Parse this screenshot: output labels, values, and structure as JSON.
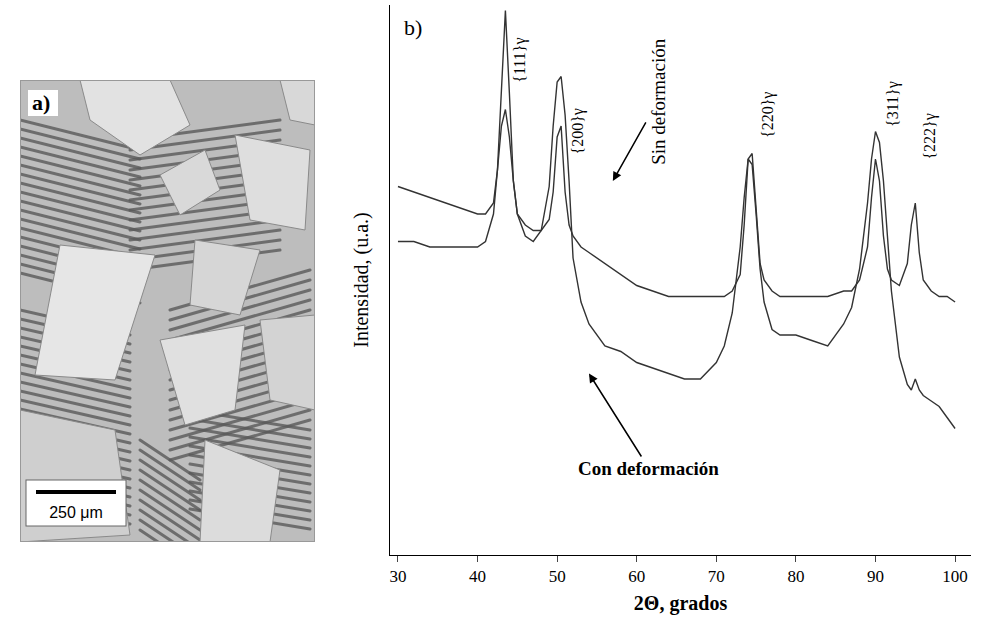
{
  "image_panel": {
    "label": "a)",
    "scale_bar": "250 μm"
  },
  "chart_data": {
    "type": "line",
    "label": "b)",
    "x_label": "2Θ, grados",
    "y_label": "Intensidad, (u.a.)",
    "x": [
      30,
      32,
      34,
      36,
      38,
      40,
      41,
      42,
      42.5,
      43,
      43.5,
      44,
      44.5,
      45,
      46,
      47,
      48,
      49,
      49.5,
      50,
      50.5,
      51,
      51.5,
      52,
      53,
      54,
      56,
      58,
      60,
      62,
      64,
      66,
      68,
      70,
      71,
      72,
      73,
      73.5,
      74,
      74.5,
      75,
      75.5,
      76,
      77,
      78,
      80,
      82,
      84,
      86,
      87,
      88,
      89,
      89.5,
      90,
      90.5,
      91,
      91.5,
      92,
      93,
      94,
      94.5,
      95,
      95.5,
      96,
      97,
      98,
      99,
      100
    ],
    "series": [
      {
        "color": "#333333",
        "values": [
          67,
          66,
          65,
          64,
          63,
          62,
          62,
          64,
          70,
          85,
          99,
          84,
          68,
          62,
          60,
          59,
          59,
          61,
          66,
          76,
          78,
          66,
          60,
          58,
          56,
          55,
          53,
          51,
          49,
          48,
          47,
          47,
          47,
          47,
          47,
          48,
          51,
          60,
          72,
          73,
          62,
          53,
          50,
          48,
          47,
          47,
          47,
          47,
          48,
          48,
          50,
          56,
          65,
          72,
          68,
          58,
          52,
          50,
          49,
          53,
          60,
          64,
          55,
          50,
          48,
          47,
          47,
          46
        ]
      },
      {
        "color": "#333333",
        "values": [
          57,
          57,
          56,
          56,
          56,
          56,
          57,
          62,
          70,
          78,
          81,
          76,
          68,
          62,
          58,
          57,
          59,
          67,
          78,
          86,
          87,
          80,
          68,
          54,
          46,
          42,
          38,
          37,
          35,
          34,
          33,
          32,
          32,
          35,
          38,
          44,
          56,
          65,
          72,
          71,
          62,
          52,
          46,
          41,
          40,
          40,
          39,
          38,
          42,
          45,
          52,
          64,
          72,
          77,
          75,
          68,
          58,
          48,
          36,
          31,
          30,
          32,
          30,
          29,
          28,
          27,
          25,
          23
        ]
      }
    ],
    "xlim": [
      29,
      102
    ],
    "xticks": [
      30,
      40,
      50,
      60,
      70,
      80,
      90,
      100
    ],
    "ylim": [
      0,
      100
    ],
    "yticks": [],
    "tick_labels": "x",
    "grid": false,
    "peak_labels": [
      {
        "text": "{111}γ",
        "x": 45.3,
        "y": 90
      },
      {
        "text": "{200}γ",
        "x": 52.5,
        "y": 77
      },
      {
        "text": "{220}γ",
        "x": 76.5,
        "y": 80
      },
      {
        "text": "{311}γ",
        "x": 92.2,
        "y": 82
      },
      {
        "text": "{222}γ",
        "x": 96.8,
        "y": 76
      }
    ],
    "arrow_labels": [
      {
        "text": "Sin deformación",
        "x": 57,
        "y": 68
      },
      {
        "text": "Con deformación",
        "x": 54,
        "y": 33
      }
    ]
  }
}
